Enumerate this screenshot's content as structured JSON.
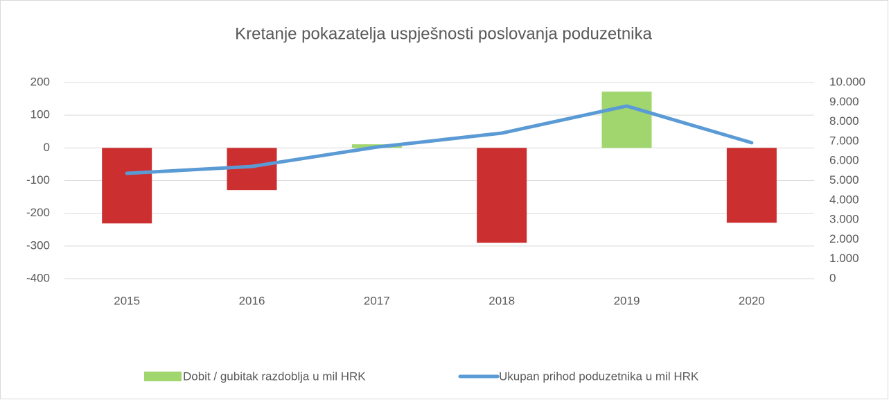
{
  "chart_data": {
    "type": "combo",
    "title": "Kretanje pokazatelja uspješnosti poslovanja poduzetnika",
    "categories": [
      "2015",
      "2016",
      "2017",
      "2018",
      "2019",
      "2020"
    ],
    "series": [
      {
        "name": "Dobit / gubitak razdoblja u mil HRK",
        "type": "bar",
        "color": "#a1d66f",
        "negative_color": "#cc2f2f",
        "values": [
          -231,
          -129,
          11,
          -290,
          172,
          -229
        ]
      },
      {
        "name": "Ukupan prihod poduzetnika u mil HRK",
        "type": "line",
        "axis": "y2",
        "color": "#5b9bd5",
        "values": [
          5370,
          5720,
          6710,
          7420,
          8800,
          6930
        ]
      }
    ],
    "ylim": [
      -400,
      200
    ],
    "yticks": [
      -400,
      -300,
      -200,
      -100,
      0,
      100,
      200
    ],
    "y2lim": [
      0,
      10000
    ],
    "y2ticks": [
      0,
      {
        "value": 1000,
        "label": "1.000"
      },
      {
        "value": 2000,
        "label": "2.000"
      },
      {
        "value": 3000,
        "label": "3.000"
      },
      {
        "value": 4000,
        "label": "4.000"
      },
      {
        "value": 5000,
        "label": "5.000"
      },
      {
        "value": 6000,
        "label": "6.000"
      },
      {
        "value": 7000,
        "label": "7.000"
      },
      {
        "value": 8000,
        "label": "8.000"
      },
      {
        "value": 9000,
        "label": "9.000"
      },
      {
        "value": 10000,
        "label": "10.000"
      }
    ],
    "grid": true,
    "legend": "bottom"
  }
}
